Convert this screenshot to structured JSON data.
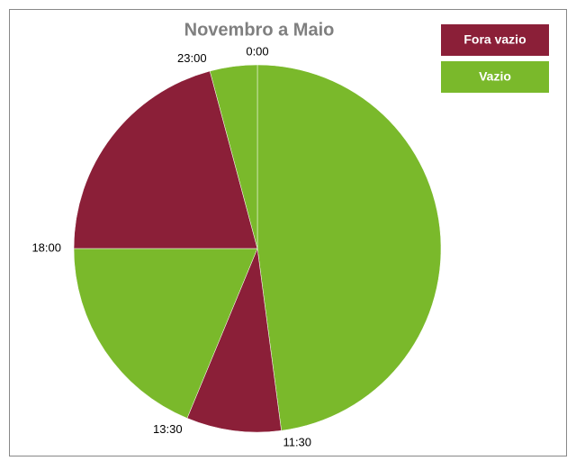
{
  "chart_data": {
    "type": "pie",
    "title": "Novembro a Maio",
    "categories": [
      "0:00",
      "11:30",
      "13:30",
      "18:00",
      "23:00"
    ],
    "values": [
      11.5,
      2,
      4.5,
      5,
      1
    ],
    "colors": [
      "#7ab92b",
      "#8b1f38",
      "#7ab92b",
      "#8b1f38",
      "#7ab92b"
    ],
    "legend": [
      {
        "name": "Fora vazio",
        "color": "#8b1f38"
      },
      {
        "name": "Vazio",
        "color": "#7ab92b"
      }
    ]
  }
}
